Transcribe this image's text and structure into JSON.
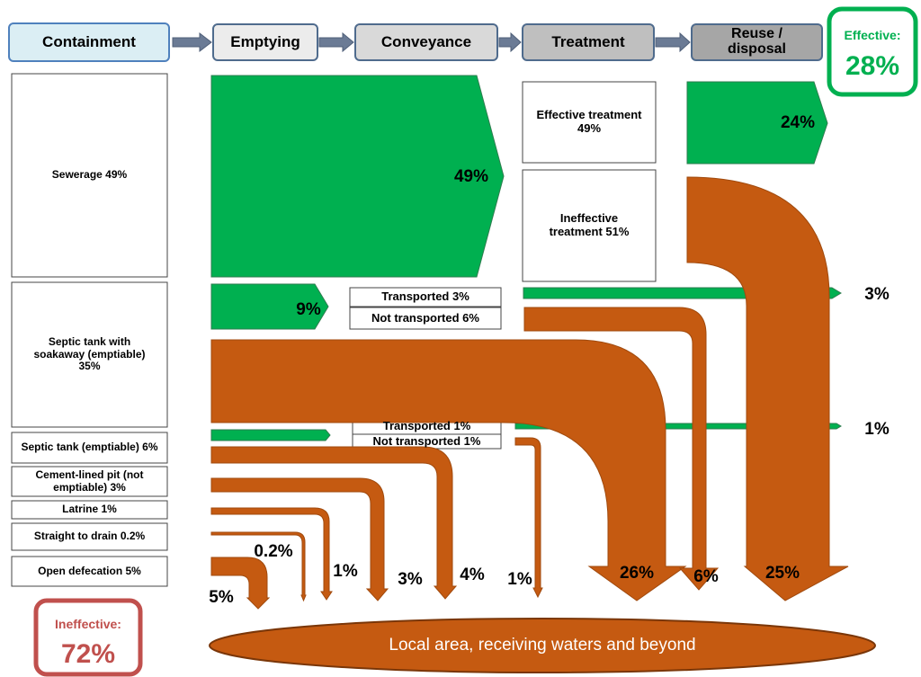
{
  "header": {
    "stages": [
      "Containment",
      "Emptying",
      "Conveyance",
      "Treatment",
      "Reuse / disposal"
    ]
  },
  "effective": {
    "label": "Effective:",
    "value": "28%"
  },
  "ineffective": {
    "label": "Ineffective:",
    "value": "72%"
  },
  "containment": [
    "Sewerage 49%",
    "Septic tank with soakaway (emptiable) 35%",
    "Septic tank (emptiable) 6%",
    "Cement-lined pit (not emptiable) 3%",
    "Latrine 1%",
    "Straight to drain 0.2%",
    "Open defecation 5%"
  ],
  "conveyance": [
    "Transported 3%",
    "Not transported 6%",
    "Transported 1%",
    "Not transported 1%"
  ],
  "treatment": [
    "Effective treatment 49%",
    "Ineffective treatment 51%"
  ],
  "flows": [
    "49%",
    "9%",
    "24%",
    "3%",
    "1%",
    "5%",
    "0.2%",
    "1%",
    "3%",
    "4%",
    "1%",
    "26%",
    "6%",
    "25%"
  ],
  "destination": "Local area, receiving waters and beyond"
}
